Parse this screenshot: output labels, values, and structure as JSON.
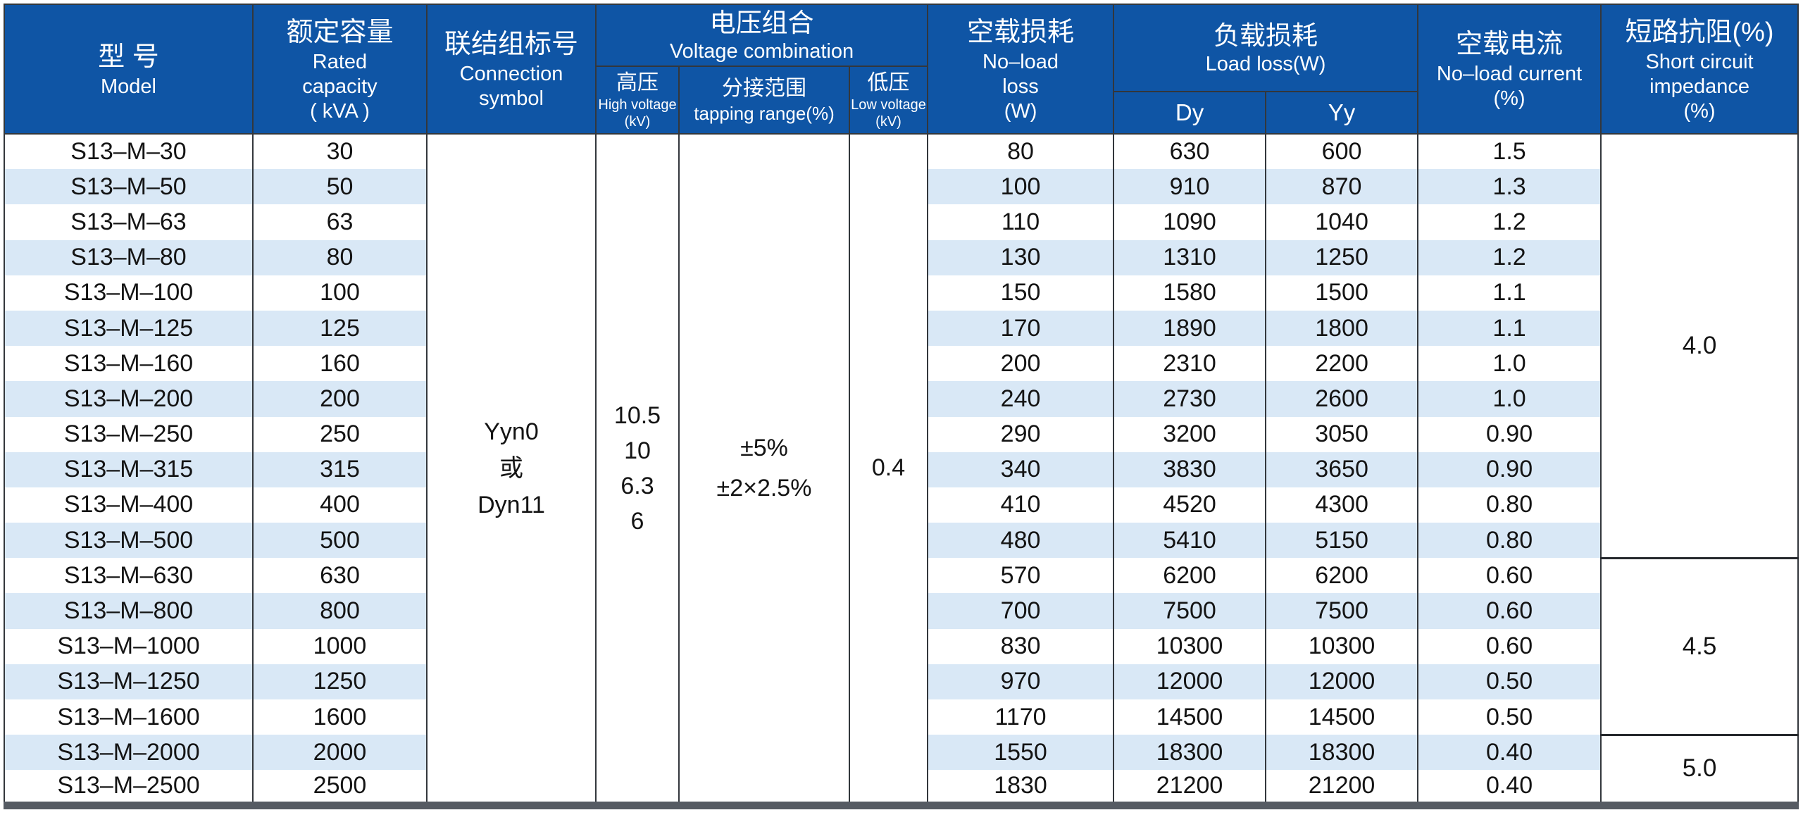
{
  "table": {
    "header": {
      "model": {
        "zh": "型 号",
        "en": "Model"
      },
      "rated_capacity": {
        "zh": "额定容量",
        "en_1": "Rated",
        "en_2": "capacity",
        "en_3": "( kVA )"
      },
      "connection_symbol": {
        "zh": "联结组标号",
        "en_1": "Connection",
        "en_2": "symbol"
      },
      "voltage_combination": {
        "zh": "电压组合",
        "en": "Voltage combination"
      },
      "high_voltage": {
        "zh": "高压",
        "en": "High voltage",
        "unit": "(kV)"
      },
      "tapping_range": {
        "zh": "分接范围",
        "en": "tapping range(%)"
      },
      "low_voltage": {
        "zh": "低压",
        "en": "Low voltage",
        "unit": "(kV)"
      },
      "no_load_loss": {
        "zh": "空载损耗",
        "en_1": "No–load",
        "en_2": "loss",
        "en_3": "(W)"
      },
      "load_loss": {
        "zh": "负载损耗",
        "en": "Load loss(W)",
        "sub_dy": "Dy",
        "sub_yy": "Yy"
      },
      "no_load_current": {
        "zh": "空载电流",
        "en_1": "No–load current",
        "en_2": "(%)"
      },
      "short_circuit_impedance": {
        "zh": "短路抗阻(%)",
        "en_1": "Short circuit",
        "en_2": "impedance",
        "en_3": "(%)"
      }
    },
    "merged": {
      "connection_symbol_lines": [
        "Yyn0",
        "或",
        "Dyn11"
      ],
      "high_voltage_lines": [
        "10.5",
        "10",
        "6.3",
        "6"
      ],
      "tapping_range_lines": [
        "±5%",
        "±2×2.5%"
      ],
      "low_voltage": "0.4",
      "impedance_groups": [
        {
          "value": "4.0",
          "rowspan": 12
        },
        {
          "value": "4.5",
          "rowspan": 5
        },
        {
          "value": "5.0",
          "rowspan": 2
        }
      ]
    },
    "rows": [
      {
        "model": "S13–M–30",
        "capacity": "30",
        "no_load_loss": "80",
        "dy": "630",
        "yy": "600",
        "no_load_current": "1.5"
      },
      {
        "model": "S13–M–50",
        "capacity": "50",
        "no_load_loss": "100",
        "dy": "910",
        "yy": "870",
        "no_load_current": "1.3"
      },
      {
        "model": "S13–M–63",
        "capacity": "63",
        "no_load_loss": "110",
        "dy": "1090",
        "yy": "1040",
        "no_load_current": "1.2"
      },
      {
        "model": "S13–M–80",
        "capacity": "80",
        "no_load_loss": "130",
        "dy": "1310",
        "yy": "1250",
        "no_load_current": "1.2"
      },
      {
        "model": "S13–M–100",
        "capacity": "100",
        "no_load_loss": "150",
        "dy": "1580",
        "yy": "1500",
        "no_load_current": "1.1"
      },
      {
        "model": "S13–M–125",
        "capacity": "125",
        "no_load_loss": "170",
        "dy": "1890",
        "yy": "1800",
        "no_load_current": "1.1"
      },
      {
        "model": "S13–M–160",
        "capacity": "160",
        "no_load_loss": "200",
        "dy": "2310",
        "yy": "2200",
        "no_load_current": "1.0"
      },
      {
        "model": "S13–M–200",
        "capacity": "200",
        "no_load_loss": "240",
        "dy": "2730",
        "yy": "2600",
        "no_load_current": "1.0"
      },
      {
        "model": "S13–M–250",
        "capacity": "250",
        "no_load_loss": "290",
        "dy": "3200",
        "yy": "3050",
        "no_load_current": "0.90"
      },
      {
        "model": "S13–M–315",
        "capacity": "315",
        "no_load_loss": "340",
        "dy": "3830",
        "yy": "3650",
        "no_load_current": "0.90"
      },
      {
        "model": "S13–M–400",
        "capacity": "400",
        "no_load_loss": "410",
        "dy": "4520",
        "yy": "4300",
        "no_load_current": "0.80"
      },
      {
        "model": "S13–M–500",
        "capacity": "500",
        "no_load_loss": "480",
        "dy": "5410",
        "yy": "5150",
        "no_load_current": "0.80"
      },
      {
        "model": "S13–M–630",
        "capacity": "630",
        "no_load_loss": "570",
        "dy": "6200",
        "yy": "6200",
        "no_load_current": "0.60"
      },
      {
        "model": "S13–M–800",
        "capacity": "800",
        "no_load_loss": "700",
        "dy": "7500",
        "yy": "7500",
        "no_load_current": "0.60"
      },
      {
        "model": "S13–M–1000",
        "capacity": "1000",
        "no_load_loss": "830",
        "dy": "10300",
        "yy": "10300",
        "no_load_current": "0.60"
      },
      {
        "model": "S13–M–1250",
        "capacity": "1250",
        "no_load_loss": "970",
        "dy": "12000",
        "yy": "12000",
        "no_load_current": "0.50"
      },
      {
        "model": "S13–M–1600",
        "capacity": "1600",
        "no_load_loss": "1170",
        "dy": "14500",
        "yy": "14500",
        "no_load_current": "0.50"
      },
      {
        "model": "S13–M–2000",
        "capacity": "2000",
        "no_load_loss": "1550",
        "dy": "18300",
        "yy": "18300",
        "no_load_current": "0.40"
      },
      {
        "model": "S13–M–2500",
        "capacity": "2500",
        "no_load_loss": "1830",
        "dy": "21200",
        "yy": "21200",
        "no_load_current": "0.40"
      }
    ]
  },
  "colors": {
    "header_blue": "#0f55a5",
    "stripe_blue": "#d9e8f6",
    "border_dark": "#33373c",
    "bottom_bar": "#565b63",
    "text": "#141414"
  }
}
